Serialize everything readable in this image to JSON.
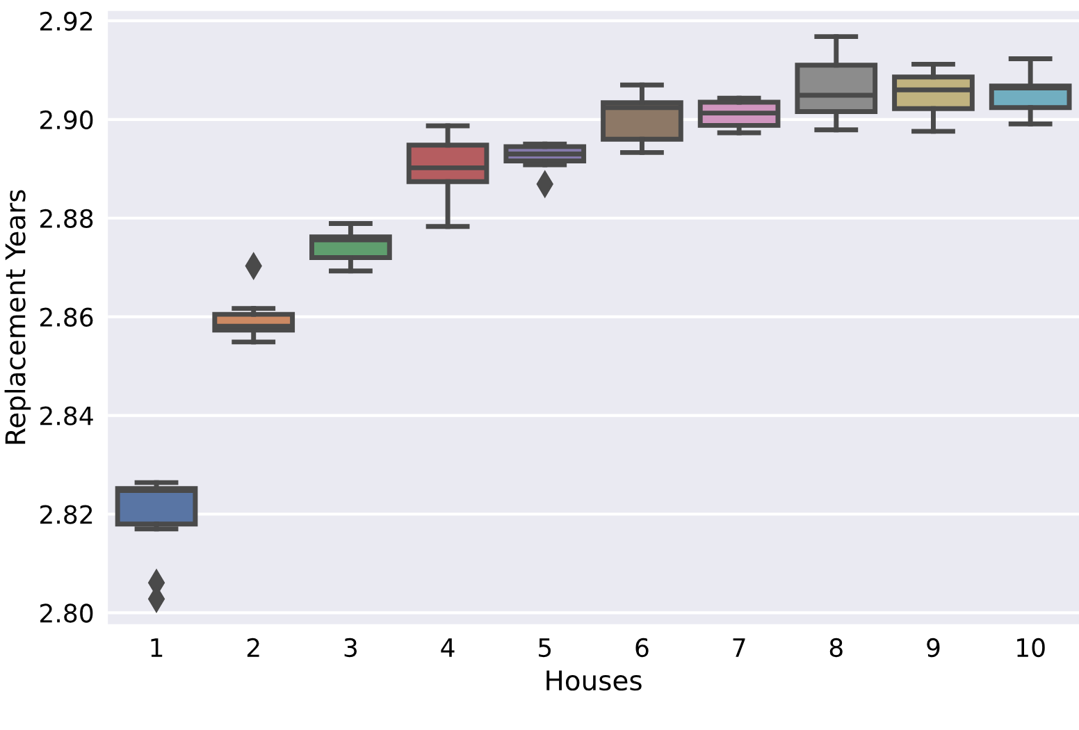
{
  "chart_data": {
    "type": "box",
    "xlabel": "Houses",
    "ylabel": "Replacement Years",
    "categories": [
      "1",
      "2",
      "3",
      "4",
      "5",
      "6",
      "7",
      "8",
      "9",
      "10"
    ],
    "colors": [
      "#5975a4",
      "#cc8963",
      "#5f9e6e",
      "#b55d60",
      "#857aab",
      "#8d7866",
      "#d095bf",
      "#8c8c8c",
      "#c1b37f",
      "#71aec0"
    ],
    "boxes": [
      {
        "low": 2.817,
        "q1": 2.818,
        "median": 2.8248,
        "q3": 2.8252,
        "high": 2.8264,
        "outliers": [
          2.8061,
          2.8028
        ]
      },
      {
        "low": 2.8549,
        "q1": 2.8573,
        "median": 2.8581,
        "q3": 2.8605,
        "high": 2.8617,
        "outliers": [
          2.8703
        ]
      },
      {
        "low": 2.8693,
        "q1": 2.872,
        "median": 2.8756,
        "q3": 2.8762,
        "high": 2.8789
      },
      {
        "low": 2.8783,
        "q1": 2.8874,
        "median": 2.8902,
        "q3": 2.8948,
        "high": 2.8987
      },
      {
        "low": 2.8908,
        "q1": 2.8916,
        "median": 2.893,
        "q3": 2.8945,
        "high": 2.895,
        "outliers": [
          2.8869
        ]
      },
      {
        "low": 2.8933,
        "q1": 2.896,
        "median": 2.9024,
        "q3": 2.9034,
        "high": 2.907
      },
      {
        "low": 2.8973,
        "q1": 2.8988,
        "median": 2.9013,
        "q3": 2.9035,
        "high": 2.9043
      },
      {
        "low": 2.8979,
        "q1": 2.9016,
        "median": 2.9049,
        "q3": 2.911,
        "high": 2.9168
      },
      {
        "low": 2.8976,
        "q1": 2.9022,
        "median": 2.906,
        "q3": 2.9086,
        "high": 2.9112
      },
      {
        "low": 2.8991,
        "q1": 2.9024,
        "median": 2.9064,
        "q3": 2.9068,
        "high": 2.9123
      }
    ],
    "ylim": [
      2.7977,
      2.922
    ],
    "yticks": [
      {
        "value": 2.8,
        "label": "2.80"
      },
      2.82,
      2.84,
      2.86,
      2.88,
      {
        "value": 2.9,
        "label": "2.90"
      },
      2.92
    ],
    "grid": "y"
  }
}
